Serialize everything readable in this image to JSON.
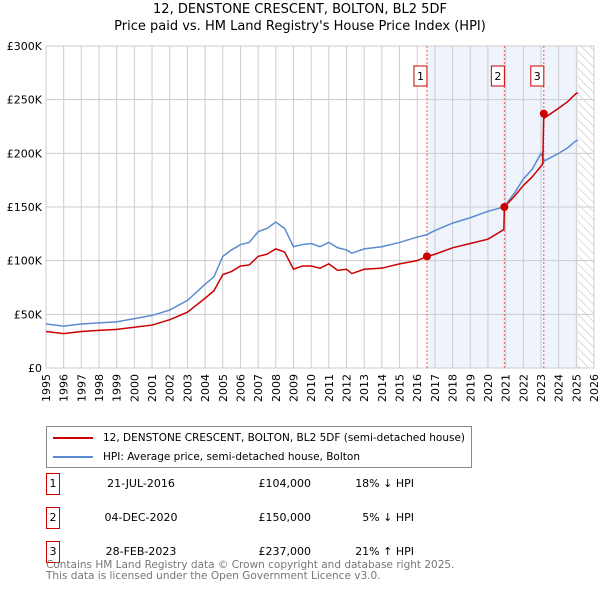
{
  "header": {
    "title": "12, DENSTONE CRESCENT, BOLTON, BL2 5DF",
    "subtitle": "Price paid vs. HM Land Registry's House Price Index (HPI)"
  },
  "chart_data": {
    "type": "line",
    "title": "12, DENSTONE CRESCENT, BOLTON, BL2 5DF",
    "subtitle": "Price paid vs. HM Land Registry's House Price Index (HPI)",
    "xlim": [
      1995,
      2026
    ],
    "ylim": [
      0,
      300000
    ],
    "x_ticks": [
      "1995",
      "1996",
      "1997",
      "1998",
      "1999",
      "2000",
      "2001",
      "2002",
      "2003",
      "2004",
      "2005",
      "2006",
      "2007",
      "2008",
      "2009",
      "2010",
      "2011",
      "2012",
      "2013",
      "2014",
      "2015",
      "2016",
      "2017",
      "2018",
      "2019",
      "2020",
      "2021",
      "2022",
      "2023",
      "2024",
      "2025",
      "2026"
    ],
    "y_ticks": [
      {
        "v": 0,
        "label": "£0"
      },
      {
        "v": 50000,
        "label": "£50K"
      },
      {
        "v": 100000,
        "label": "£100K"
      },
      {
        "v": 150000,
        "label": "£150K"
      },
      {
        "v": 200000,
        "label": "£200K"
      },
      {
        "v": 250000,
        "label": "£250K"
      },
      {
        "v": 300000,
        "label": "£300K"
      }
    ],
    "series": [
      {
        "name": "12, DENSTONE CRESCENT, BOLTON, BL2 5DF (semi-detached house)",
        "color": "#cc0000",
        "x": [
          1995,
          1996,
          1997,
          1998,
          1999,
          2000,
          2001,
          2002,
          2003,
          2004,
          2004.5,
          2005,
          2005.5,
          2006,
          2006.5,
          2007,
          2007.5,
          2008,
          2008.5,
          2009,
          2009.5,
          2010,
          2010.5,
          2011,
          2011.5,
          2012,
          2012.3,
          2013,
          2014,
          2015,
          2016,
          2016.55,
          2017,
          2018,
          2019,
          2020,
          2020.9,
          2020.93,
          2021.5,
          2022,
          2022.5,
          2023.1,
          2023.16,
          2023.2,
          2024,
          2024.5,
          2025,
          2025.1
        ],
        "y": [
          34000,
          32000,
          34000,
          35000,
          36000,
          38000,
          40000,
          45000,
          52000,
          65000,
          72000,
          87000,
          90000,
          95000,
          96000,
          104000,
          106000,
          111000,
          108000,
          92000,
          95000,
          95000,
          93000,
          97000,
          91000,
          92000,
          88000,
          92000,
          93000,
          97000,
          100000,
          104000,
          106000,
          112000,
          116000,
          120000,
          129000,
          150000,
          160000,
          170000,
          178000,
          190000,
          237000,
          233000,
          242000,
          248000,
          256000,
          256000
        ]
      },
      {
        "name": "HPI: Average price, semi-detached house, Bolton",
        "color": "#5b8bd0",
        "x": [
          1995,
          1996,
          1997,
          1998,
          1999,
          2000,
          2001,
          2002,
          2003,
          2004,
          2004.5,
          2005,
          2005.5,
          2006,
          2006.5,
          2007,
          2007.5,
          2008,
          2008.5,
          2009,
          2009.5,
          2010,
          2010.5,
          2011,
          2011.5,
          2012,
          2012.3,
          2013,
          2014,
          2015,
          2016,
          2016.5,
          2017,
          2018,
          2019,
          2020,
          2020.9,
          2021.5,
          2022,
          2022.5,
          2023,
          2023.2,
          2024,
          2024.5,
          2025,
          2025.1
        ],
        "y": [
          41000,
          39000,
          41000,
          42000,
          43000,
          46000,
          49000,
          54000,
          63000,
          78000,
          85000,
          104000,
          110000,
          115000,
          117000,
          127000,
          130000,
          136000,
          130000,
          113000,
          115000,
          116000,
          113000,
          117000,
          112000,
          110000,
          107000,
          111000,
          113000,
          117000,
          122000,
          124000,
          128000,
          135000,
          140000,
          146000,
          150000,
          163000,
          176000,
          185000,
          200000,
          193000,
          200000,
          205000,
          212000,
          212000
        ]
      }
    ],
    "sales": [
      {
        "id": "1",
        "x": 2016.55,
        "y": 104000,
        "date": "21-JUL-2016",
        "price": "£104,000",
        "hpi": "18% ↓ HPI"
      },
      {
        "id": "2",
        "x": 2020.93,
        "y": 150000,
        "date": "04-DEC-2020",
        "price": "£150,000",
        "hpi": "5% ↓ HPI"
      },
      {
        "id": "3",
        "x": 2023.16,
        "y": 237000,
        "date": "28-FEB-2023",
        "price": "£237,000",
        "hpi": "21% ↑ HPI"
      }
    ],
    "shaded_from": 2016.55,
    "data_end": 2025.1
  },
  "footer": {
    "line1": "Contains HM Land Registry data © Crown copyright and database right 2025.",
    "line2": "This data is licensed under the Open Government Licence v3.0."
  }
}
